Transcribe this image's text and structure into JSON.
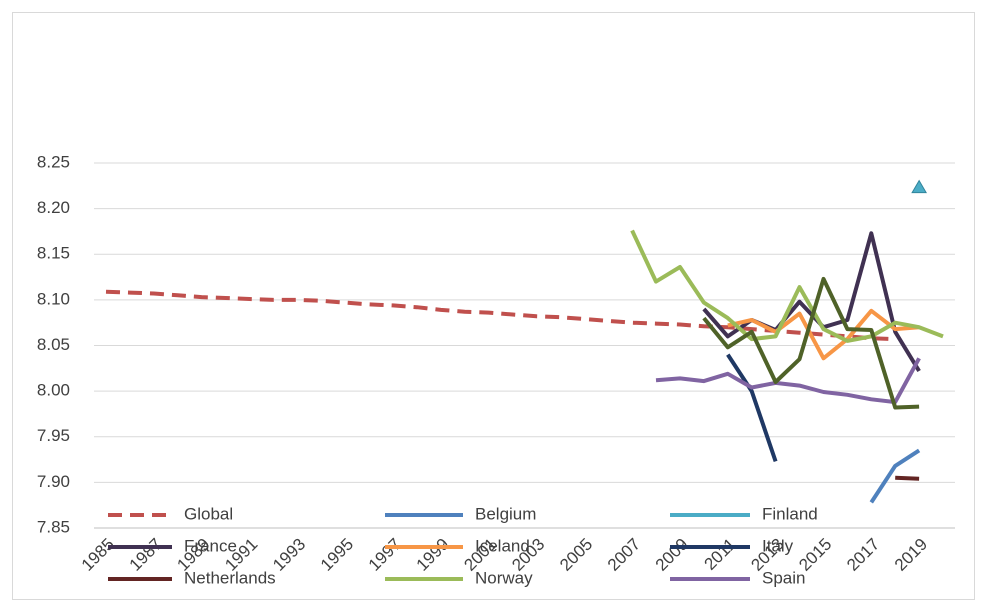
{
  "chart_data": {
    "type": "line",
    "categories": [
      "1985",
      null,
      "1987",
      null,
      "1989",
      null,
      "1991",
      null,
      "1993",
      null,
      "1995",
      null,
      "1997",
      null,
      "1999",
      null,
      "2001",
      null,
      "2003",
      null,
      "2005",
      null,
      "2007",
      null,
      "2009",
      null,
      "2011",
      null,
      "2013",
      null,
      "2015",
      null,
      "2017",
      null,
      "2019",
      null
    ],
    "ylim": [
      7.85,
      8.25
    ],
    "yticks": [
      {
        "value": 7.85,
        "label": "7.85"
      },
      {
        "value": 7.9,
        "label": "7.90"
      },
      {
        "value": 7.95,
        "label": "7.95"
      },
      {
        "value": 8.0,
        "label": "8.00"
      },
      {
        "value": 8.05,
        "label": "8.05"
      },
      {
        "value": 8.1,
        "label": "8.10"
      },
      {
        "value": 8.15,
        "label": "8.15"
      },
      {
        "value": 8.2,
        "label": "8.20"
      },
      {
        "value": 8.25,
        "label": "8.25"
      }
    ],
    "grid": true,
    "legend": "bottom",
    "series": [
      {
        "name": "Global",
        "color": "#c0504d",
        "dash": true,
        "values": [
          8.109,
          8.108,
          8.107,
          8.105,
          8.103,
          8.102,
          8.101,
          8.1,
          8.1,
          8.099,
          8.097,
          8.095,
          8.094,
          8.092,
          8.089,
          8.087,
          8.086,
          8.084,
          8.082,
          8.081,
          8.079,
          8.077,
          8.075,
          8.074,
          8.073,
          8.071,
          8.07,
          8.068,
          8.066,
          8.064,
          8.062,
          8.06,
          8.058,
          8.057,
          null,
          null
        ]
      },
      {
        "name": "Belgium",
        "color": "#4f81bd",
        "values": [
          null,
          null,
          null,
          null,
          null,
          null,
          null,
          null,
          null,
          null,
          null,
          null,
          null,
          null,
          null,
          null,
          null,
          null,
          null,
          null,
          null,
          null,
          null,
          null,
          null,
          null,
          null,
          null,
          null,
          null,
          null,
          null,
          7.878,
          7.918,
          7.935,
          null
        ]
      },
      {
        "name": "Finland",
        "color": "#4bacc6",
        "marker": "triangle",
        "values": [
          null,
          null,
          null,
          null,
          null,
          null,
          null,
          null,
          null,
          null,
          null,
          null,
          null,
          null,
          null,
          null,
          null,
          null,
          null,
          null,
          null,
          null,
          null,
          null,
          null,
          null,
          null,
          null,
          null,
          null,
          null,
          null,
          null,
          null,
          8.223,
          null
        ]
      },
      {
        "name": "France",
        "color": "#403152",
        "values": [
          null,
          null,
          null,
          null,
          null,
          null,
          null,
          null,
          null,
          null,
          null,
          null,
          null,
          null,
          null,
          null,
          null,
          null,
          null,
          null,
          null,
          null,
          null,
          null,
          null,
          8.09,
          8.06,
          8.078,
          8.067,
          8.098,
          8.07,
          8.078,
          8.173,
          8.065,
          8.022,
          null
        ]
      },
      {
        "name": "Iceland",
        "color": "#f79646",
        "values": [
          null,
          null,
          null,
          null,
          null,
          null,
          null,
          null,
          null,
          null,
          null,
          null,
          null,
          null,
          null,
          null,
          null,
          null,
          null,
          null,
          null,
          null,
          null,
          null,
          null,
          null,
          8.072,
          8.078,
          8.065,
          8.085,
          8.036,
          8.057,
          8.088,
          8.068,
          8.07,
          null
        ]
      },
      {
        "name": "Italy",
        "color": "#1f3864",
        "values": [
          null,
          null,
          null,
          null,
          null,
          null,
          null,
          null,
          null,
          null,
          null,
          null,
          null,
          null,
          null,
          null,
          null,
          null,
          null,
          null,
          null,
          null,
          null,
          null,
          null,
          null,
          8.04,
          8.0,
          7.923,
          null,
          null,
          null,
          null,
          null,
          null,
          null
        ]
      },
      {
        "name": "Netherlands",
        "color": "#632523",
        "values": [
          null,
          null,
          null,
          null,
          null,
          null,
          null,
          null,
          null,
          null,
          null,
          null,
          null,
          null,
          null,
          null,
          null,
          null,
          null,
          null,
          null,
          null,
          null,
          null,
          null,
          null,
          null,
          null,
          null,
          null,
          null,
          null,
          null,
          7.905,
          7.904,
          null
        ]
      },
      {
        "name": "Norway",
        "color": "#9bbb59",
        "values": [
          null,
          null,
          null,
          null,
          null,
          null,
          null,
          null,
          null,
          null,
          null,
          null,
          null,
          null,
          null,
          null,
          null,
          null,
          null,
          null,
          null,
          null,
          8.176,
          8.12,
          8.136,
          8.097,
          8.08,
          8.057,
          8.06,
          8.114,
          8.068,
          8.055,
          8.06,
          8.075,
          8.07,
          8.06
        ]
      },
      {
        "name": "Spain",
        "color": "#8064a2",
        "values": [
          null,
          null,
          null,
          null,
          null,
          null,
          null,
          null,
          null,
          null,
          null,
          null,
          null,
          null,
          null,
          null,
          null,
          null,
          null,
          null,
          null,
          null,
          null,
          8.012,
          8.014,
          8.011,
          8.019,
          8.004,
          8.009,
          8.006,
          7.999,
          7.996,
          7.991,
          7.988,
          8.036,
          null
        ]
      },
      {
        "color": "#4f6228",
        "values": [
          null,
          null,
          null,
          null,
          null,
          null,
          null,
          null,
          null,
          null,
          null,
          null,
          null,
          null,
          null,
          null,
          null,
          null,
          null,
          null,
          null,
          null,
          null,
          null,
          null,
          8.08,
          8.048,
          8.065,
          8.01,
          8.035,
          8.123,
          8.068,
          8.067,
          7.982,
          7.983,
          null
        ]
      }
    ]
  }
}
